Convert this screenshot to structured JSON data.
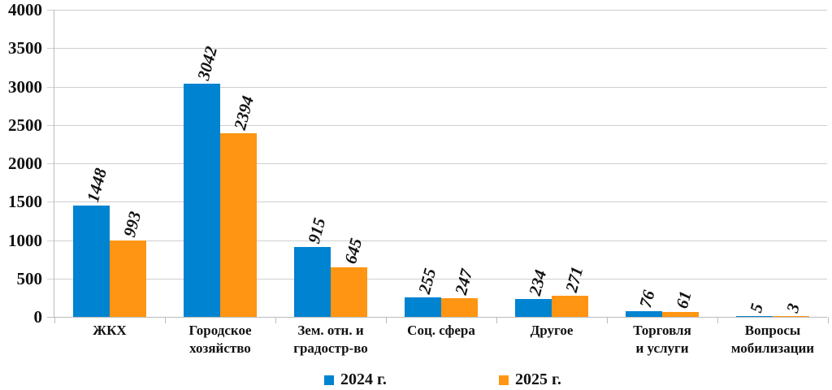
{
  "chart_data": {
    "type": "bar",
    "title": "",
    "xlabel": "",
    "ylabel": "",
    "ylim": [
      0,
      4000
    ],
    "yticks": [
      0,
      500,
      1000,
      1500,
      2000,
      2500,
      3000,
      3500,
      4000
    ],
    "grid": true,
    "legend_position": "bottom",
    "categories": [
      "ЖКХ",
      "Городское хозяйство",
      "Зем. отн. и градостр-во",
      "Соц. сфера",
      "Другое",
      "Торговля и услуги",
      "Вопросы мобилизации"
    ],
    "category_lines": [
      [
        "ЖКХ"
      ],
      [
        "Городское",
        "хозяйство"
      ],
      [
        "Зем. отн. и",
        "градостр-во"
      ],
      [
        "Соц. сфера"
      ],
      [
        "Другое"
      ],
      [
        "Торговля",
        "и услуги"
      ],
      [
        "Вопросы",
        "мобилизации"
      ]
    ],
    "series": [
      {
        "name": "2024 г.",
        "color": "#0083d0",
        "values": [
          1448,
          3042,
          915,
          255,
          234,
          76,
          5
        ]
      },
      {
        "name": "2025 г.",
        "color": "#ff9512",
        "values": [
          993,
          2394,
          645,
          247,
          271,
          61,
          3
        ]
      }
    ]
  }
}
